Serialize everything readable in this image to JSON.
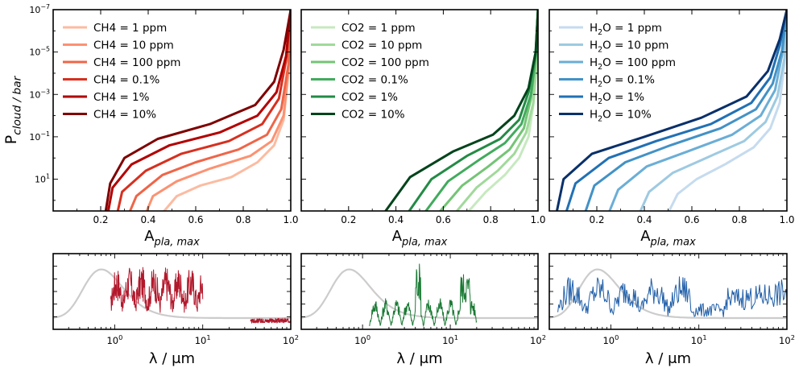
{
  "ylabel_top": "P$cloud / bar",
  "chart_data": [
    {
      "type": "line",
      "panel": "top-left",
      "xlabel": "A$pla, max",
      "ylabel": "P$cloud / bar",
      "xlim": [
        0.0,
        1.0
      ],
      "ylim_log10_top_to_bottom": [
        -7,
        2.5
      ],
      "y_inverted_log": true,
      "xticks": [
        "0.2",
        "0.4",
        "0.6",
        "0.8",
        "1.0"
      ],
      "yticks": [
        "10^-7",
        "10^-5",
        "10^-3",
        "10^-1",
        "10^1"
      ],
      "legend": "upper-left",
      "series": [
        {
          "name": "CH4 = 1 ppm",
          "color": "#fcbba1",
          "x": [
            0.46,
            0.52,
            0.62,
            0.75,
            0.86,
            0.93,
            0.97,
            0.99,
            1.0
          ],
          "log10p": [
            2.6,
            1.8,
            1.3,
            0.9,
            0.2,
            -0.6,
            -1.8,
            -4.0,
            -7.0
          ]
        },
        {
          "name": "CH4 = 10 ppm",
          "color": "#fc9272",
          "x": [
            0.39,
            0.42,
            0.52,
            0.66,
            0.83,
            0.92,
            0.97,
            0.99,
            1.0
          ],
          "log10p": [
            2.6,
            1.8,
            1.1,
            0.5,
            -0.1,
            -0.8,
            -2.0,
            -4.2,
            -7.0
          ]
        },
        {
          "name": "CH4 = 100 ppm",
          "color": "#ef6548",
          "x": [
            0.32,
            0.35,
            0.46,
            0.6,
            0.78,
            0.9,
            0.96,
            0.99,
            1.0
          ],
          "log10p": [
            2.6,
            1.8,
            0.8,
            0.2,
            -0.4,
            -1.1,
            -2.3,
            -4.4,
            -7.0
          ]
        },
        {
          "name": "CH4 = 0.1%",
          "color": "#d7301f",
          "x": [
            0.27,
            0.29,
            0.39,
            0.54,
            0.74,
            0.88,
            0.95,
            0.98,
            1.0
          ],
          "log10p": [
            2.6,
            1.6,
            0.6,
            -0.2,
            -0.8,
            -1.6,
            -2.8,
            -4.6,
            -7.0
          ]
        },
        {
          "name": "CH4 = 1%",
          "color": "#b30000",
          "x": [
            0.23,
            0.25,
            0.33,
            0.49,
            0.7,
            0.86,
            0.94,
            0.98,
            1.0
          ],
          "log10p": [
            2.6,
            1.4,
            0.3,
            -0.6,
            -1.2,
            -2.0,
            -3.1,
            -4.8,
            -7.0
          ]
        },
        {
          "name": "CH4 = 10%",
          "color": "#7f0000",
          "x": [
            0.22,
            0.24,
            0.3,
            0.44,
            0.66,
            0.85,
            0.93,
            0.97,
            1.0
          ],
          "log10p": [
            2.6,
            1.2,
            0.0,
            -0.9,
            -1.6,
            -2.5,
            -3.6,
            -5.1,
            -7.0
          ]
        }
      ]
    },
    {
      "type": "line",
      "panel": "top-middle",
      "xlabel": "A$pla, max",
      "xlim": [
        0.0,
        1.0
      ],
      "ylim_log10_top_to_bottom": [
        -7,
        2.5
      ],
      "y_inverted_log": true,
      "xticks": [
        "0.2",
        "0.4",
        "0.6",
        "0.8",
        "1.0"
      ],
      "legend": "upper-left",
      "series": [
        {
          "name": "CO2 = 1 ppm",
          "color": "#c7e9c0",
          "x": [
            0.7,
            0.78,
            0.86,
            0.92,
            0.96,
            0.98,
            0.995,
            1.0
          ],
          "log10p": [
            2.6,
            1.6,
            0.8,
            0.0,
            -1.0,
            -2.5,
            -4.5,
            -7.0
          ]
        },
        {
          "name": "CO2 = 10 ppm",
          "color": "#a1d99b",
          "x": [
            0.65,
            0.74,
            0.83,
            0.9,
            0.95,
            0.98,
            0.995,
            1.0
          ],
          "log10p": [
            2.6,
            1.4,
            0.6,
            -0.2,
            -1.2,
            -2.6,
            -4.6,
            -7.0
          ]
        },
        {
          "name": "CO2 = 100 ppm",
          "color": "#74c476",
          "x": [
            0.58,
            0.68,
            0.79,
            0.88,
            0.94,
            0.97,
            0.99,
            1.0
          ],
          "log10p": [
            2.6,
            1.3,
            0.4,
            -0.4,
            -1.4,
            -2.8,
            -4.7,
            -7.0
          ]
        },
        {
          "name": "CO2 = 0.1%",
          "color": "#41ab5d",
          "x": [
            0.52,
            0.62,
            0.75,
            0.86,
            0.93,
            0.97,
            0.99,
            1.0
          ],
          "log10p": [
            2.6,
            1.1,
            0.1,
            -0.7,
            -1.6,
            -3.0,
            -4.8,
            -7.0
          ]
        },
        {
          "name": "CO2 = 1%",
          "color": "#238b45",
          "x": [
            0.45,
            0.55,
            0.7,
            0.84,
            0.92,
            0.96,
            0.99,
            1.0
          ],
          "log10p": [
            2.6,
            1.0,
            -0.1,
            -0.9,
            -1.8,
            -3.1,
            -4.9,
            -7.0
          ]
        },
        {
          "name": "CO2 = 10%",
          "color": "#00441b",
          "x": [
            0.35,
            0.46,
            0.64,
            0.81,
            0.9,
            0.96,
            0.99,
            1.0
          ],
          "log10p": [
            2.6,
            0.9,
            -0.3,
            -1.1,
            -2.0,
            -3.3,
            -5.0,
            -7.0
          ]
        }
      ]
    },
    {
      "type": "line",
      "panel": "top-right",
      "xlabel": "A$pla, max",
      "xlim": [
        0.0,
        1.0
      ],
      "ylim_log10_top_to_bottom": [
        -7,
        2.5
      ],
      "y_inverted_log": true,
      "xticks": [
        "0.2",
        "0.4",
        "0.6",
        "0.8",
        "1.0"
      ],
      "legend": "upper-left",
      "series": [
        {
          "name": "H2O = 1 ppm",
          "color": "#c6dbef",
          "x": [
            0.5,
            0.54,
            0.62,
            0.74,
            0.86,
            0.93,
            0.97,
            0.99,
            1.0
          ],
          "log10p": [
            2.6,
            1.7,
            1.0,
            0.3,
            -0.5,
            -1.4,
            -2.6,
            -4.5,
            -7.0
          ]
        },
        {
          "name": "H2O = 10 ppm",
          "color": "#9ecae1",
          "x": [
            0.38,
            0.42,
            0.52,
            0.66,
            0.82,
            0.91,
            0.96,
            0.99,
            1.0
          ],
          "log10p": [
            2.6,
            1.6,
            0.7,
            0.0,
            -0.8,
            -1.7,
            -2.9,
            -4.7,
            -7.0
          ]
        },
        {
          "name": "H2O = 100 ppm",
          "color": "#6baed6",
          "x": [
            0.25,
            0.29,
            0.41,
            0.58,
            0.77,
            0.89,
            0.95,
            0.98,
            1.0
          ],
          "log10p": [
            2.6,
            1.5,
            0.4,
            -0.3,
            -1.1,
            -2.0,
            -3.2,
            -4.9,
            -7.0
          ]
        },
        {
          "name": "H2O = 0.1%",
          "color": "#4292c6",
          "x": [
            0.15,
            0.19,
            0.32,
            0.51,
            0.72,
            0.87,
            0.94,
            0.98,
            1.0
          ],
          "log10p": [
            2.6,
            1.3,
            0.2,
            -0.6,
            -1.4,
            -2.3,
            -3.5,
            -5.1,
            -7.0
          ]
        },
        {
          "name": "H2O = 1%",
          "color": "#2171b5",
          "x": [
            0.07,
            0.11,
            0.25,
            0.45,
            0.68,
            0.85,
            0.93,
            0.97,
            1.0
          ],
          "log10p": [
            2.6,
            1.2,
            0.0,
            -0.8,
            -1.6,
            -2.6,
            -3.8,
            -5.3,
            -7.0
          ]
        },
        {
          "name": "H2O = 10%",
          "color": "#08306b",
          "x": [
            0.03,
            0.06,
            0.18,
            0.4,
            0.64,
            0.83,
            0.92,
            0.97,
            1.0
          ],
          "log10p": [
            2.6,
            1.0,
            -0.2,
            -1.0,
            -1.9,
            -2.9,
            -4.1,
            -5.6,
            -7.0
          ]
        }
      ]
    },
    {
      "type": "line",
      "panel": "bottom-left",
      "xlabel": "λ / μm",
      "x_scale": "log",
      "xlim": [
        0.2,
        100
      ],
      "xticks": [
        "10^0",
        "10^1",
        "10^2"
      ],
      "series": [
        {
          "name": "",
          "color": "#b2182b",
          "role": "absorption (CH4)"
        },
        {
          "name": "",
          "color": "#cccccc",
          "role": "blackbody curve"
        }
      ]
    },
    {
      "type": "line",
      "panel": "bottom-middle",
      "xlabel": "λ / μm",
      "x_scale": "log",
      "xlim": [
        0.2,
        100
      ],
      "xticks": [
        "10^0",
        "10^1",
        "10^2"
      ],
      "series": [
        {
          "name": "",
          "color": "#1a7a34",
          "role": "absorption (CO2)"
        },
        {
          "name": "",
          "color": "#cccccc",
          "role": "blackbody curve"
        }
      ]
    },
    {
      "type": "line",
      "panel": "bottom-right",
      "xlabel": "λ / μm",
      "x_scale": "log",
      "xlim": [
        0.2,
        100
      ],
      "xticks": [
        "10^0",
        "10^1",
        "10^2"
      ],
      "series": [
        {
          "name": "",
          "color": "#1f5ea8",
          "role": "absorption (H2O)"
        },
        {
          "name": "",
          "color": "#cccccc",
          "role": "blackbody curve"
        }
      ]
    }
  ]
}
